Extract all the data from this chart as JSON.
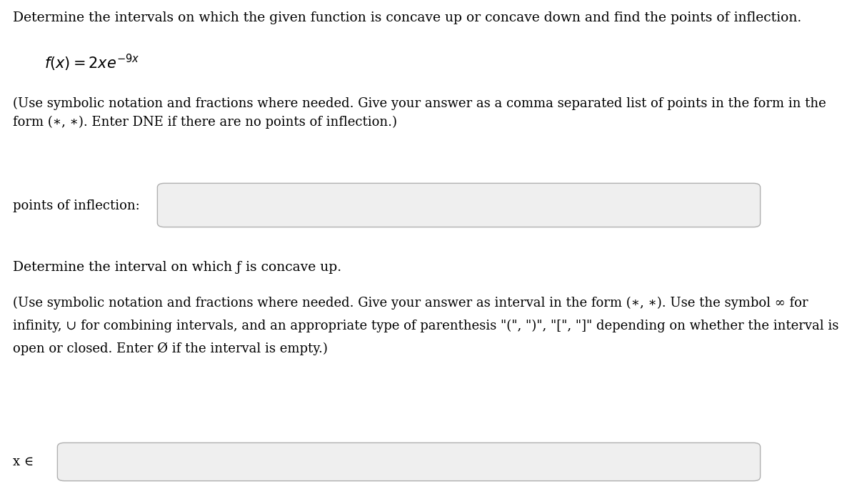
{
  "background_color": "#ffffff",
  "main_instruction": "Determine the intervals on which the given function is concave up or concave down and find the points of inflection.",
  "use_note_1_line1": "(Use symbolic notation and fractions where needed. Give your answer as a comma separated list of points in the form in the",
  "use_note_1_line2": "form (∗, ∗). Enter DNE if there are no points of inflection.)",
  "label_inflection": "points of inflection:",
  "section2_title": "Determine the interval on which ƒ is concave up.",
  "use_note_2_line1": "(Use symbolic notation and fractions where needed. Give your answer as interval in the form (∗, ∗). Use the symbol ∞ for",
  "use_note_2_line2": "infinity, ∪ for combining intervals, and an appropriate type of parenthesis \"(\", \")\", \"[\", \"]\" depending on whether the interval is",
  "use_note_2_line3": "open or closed. Enter Ø if the interval is empty.)",
  "label_x": "x ∈",
  "text_color": "#000000",
  "box_fill": "#efefef",
  "box_edge": "#b0b0b0",
  "font_size_main": 13.5,
  "font_size_function": 15,
  "font_size_note": 13.0,
  "font_size_label": 13.0,
  "font_size_section": 13.5
}
